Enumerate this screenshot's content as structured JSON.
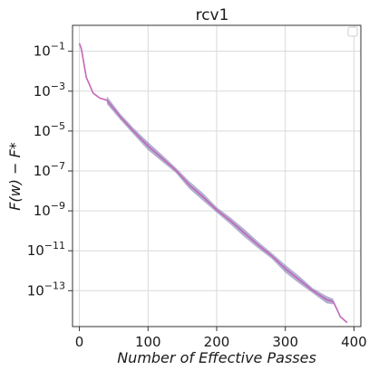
{
  "chart_data": {
    "type": "line",
    "title": "rcv1",
    "xlabel": "Number of Effective Passes",
    "ylabel": "F(w) − F*",
    "xlim": [
      -10,
      410
    ],
    "ylim_exp": [
      -14.8,
      0.3
    ],
    "yscale": "log",
    "grid": true,
    "legend": "top-right (empty)",
    "x_ticks": [
      0,
      100,
      200,
      300,
      400
    ],
    "y_ticks_exp": [
      -1,
      -3,
      -5,
      -7,
      -9,
      -11,
      -13
    ],
    "y_tick_base": "10",
    "series": [
      {
        "color": "#c266b8",
        "x": [
          0,
          3,
          10,
          20,
          30,
          40,
          60,
          80,
          100,
          120,
          140,
          160,
          180,
          200,
          220,
          240,
          260,
          280,
          300,
          320,
          340,
          360,
          370,
          380,
          390
        ],
        "y_exp": [
          -0.6,
          -0.9,
          -2.3,
          -3.1,
          -3.35,
          -3.45,
          -4.3,
          -5.05,
          -5.75,
          -6.35,
          -6.95,
          -7.7,
          -8.3,
          -8.95,
          -9.5,
          -10.1,
          -10.7,
          -11.25,
          -11.9,
          -12.45,
          -13.0,
          -13.45,
          -13.55,
          -14.3,
          -14.6
        ]
      }
    ],
    "band_color": "#7d7bb0",
    "band_range_x": [
      40,
      375
    ]
  }
}
